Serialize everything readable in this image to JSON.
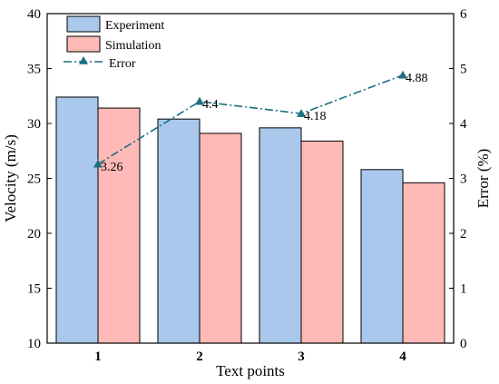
{
  "chart_data": {
    "type": "bar",
    "categories": [
      "1",
      "2",
      "3",
      "4"
    ],
    "xlabel": "Text points",
    "ylabel": "Velocity (m/s)",
    "ylabel_right": "Error (%)",
    "ylim": [
      10,
      40
    ],
    "ylim_right": [
      0,
      6
    ],
    "yticks": [
      10,
      15,
      20,
      25,
      30,
      35,
      40
    ],
    "yticks_right": [
      0,
      1,
      2,
      3,
      4,
      5,
      6
    ],
    "legend_position": "top-left",
    "grid": false,
    "series": [
      {
        "name": "Experiment",
        "type": "bar",
        "axis": "left",
        "values": [
          32.4,
          30.4,
          29.6,
          25.8
        ],
        "color": "#a9c8ec"
      },
      {
        "name": "Simulation",
        "type": "bar",
        "axis": "left",
        "values": [
          31.4,
          29.1,
          28.4,
          24.6
        ],
        "color": "#ffb9b7"
      },
      {
        "name": "Error",
        "type": "line",
        "axis": "right",
        "values": [
          3.26,
          4.4,
          4.18,
          4.88
        ],
        "labels": [
          "3.26",
          "4.4",
          "4.18",
          "4.88"
        ],
        "color": "#1a7080",
        "line_style": "dash-dot",
        "marker": "triangle"
      }
    ]
  }
}
